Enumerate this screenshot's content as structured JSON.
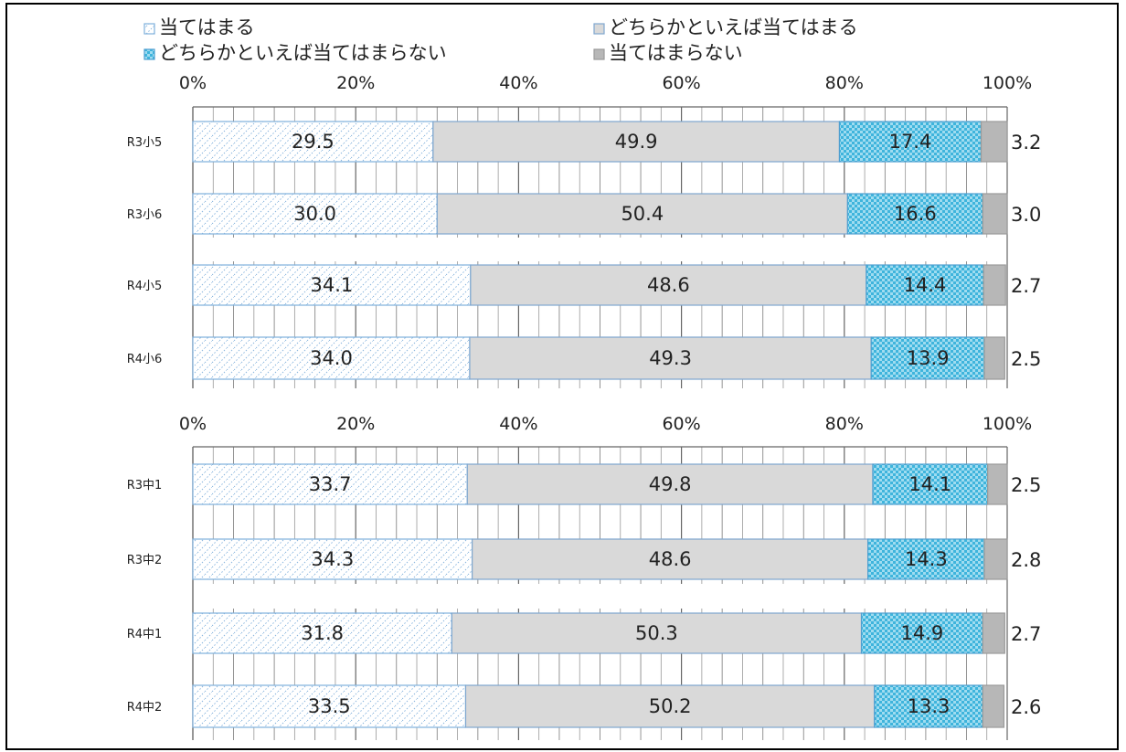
{
  "chart_data": {
    "type": "bar",
    "stacked": true,
    "orientation": "horizontal",
    "xlim": [
      0,
      100
    ],
    "x_ticks": [
      "0%",
      "20%",
      "40%",
      "60%",
      "80%",
      "100%"
    ],
    "legend": [
      "当てはまる",
      "どちらかといえば当てはまる",
      "どちらかといえば当てはまらない",
      "当てはまらない"
    ],
    "legend_position": "top",
    "series_colors": [
      "#eaf2fb",
      "#d9d9d9",
      "#58c5e6",
      "#b7b7b7"
    ],
    "panels": [
      {
        "categories": [
          "R3小5",
          "R3小6",
          "R4小5",
          "R4小6"
        ],
        "series": [
          {
            "name": "当てはまる",
            "values": [
              29.5,
              30.0,
              34.1,
              34.0
            ]
          },
          {
            "name": "どちらかといえば当てはまる",
            "values": [
              49.9,
              50.4,
              48.6,
              49.3
            ]
          },
          {
            "name": "どちらかといえば当てはまらない",
            "values": [
              17.4,
              16.6,
              14.4,
              13.9
            ]
          },
          {
            "name": "当てはまらない",
            "values": [
              3.2,
              3.0,
              2.7,
              2.5
            ]
          }
        ],
        "labels": [
          [
            "29.5",
            "49.9",
            "17.4",
            "3.2"
          ],
          [
            "30.0",
            "50.4",
            "16.6",
            "3.0"
          ],
          [
            "34.1",
            "48.6",
            "14.4",
            "2.7"
          ],
          [
            "34.0",
            "49.3",
            "13.9",
            "2.5"
          ]
        ]
      },
      {
        "categories": [
          "R3中1",
          "R3中2",
          "R4中1",
          "R4中2"
        ],
        "series": [
          {
            "name": "当てはまる",
            "values": [
              33.7,
              34.3,
              31.8,
              33.5
            ]
          },
          {
            "name": "どちらかといえば当てはまる",
            "values": [
              49.8,
              48.6,
              50.3,
              50.2
            ]
          },
          {
            "name": "どちらかといえば当てはまらない",
            "values": [
              14.1,
              14.3,
              14.9,
              13.3
            ]
          },
          {
            "name": "当てはまらない",
            "values": [
              2.5,
              2.8,
              2.7,
              2.6
            ]
          }
        ],
        "labels": [
          [
            "33.7",
            "49.8",
            "14.1",
            "2.5"
          ],
          [
            "34.3",
            "48.6",
            "14.3",
            "2.8"
          ],
          [
            "31.8",
            "50.3",
            "14.9",
            "2.7"
          ],
          [
            "33.5",
            "50.2",
            "13.3",
            "2.6"
          ]
        ]
      }
    ]
  }
}
